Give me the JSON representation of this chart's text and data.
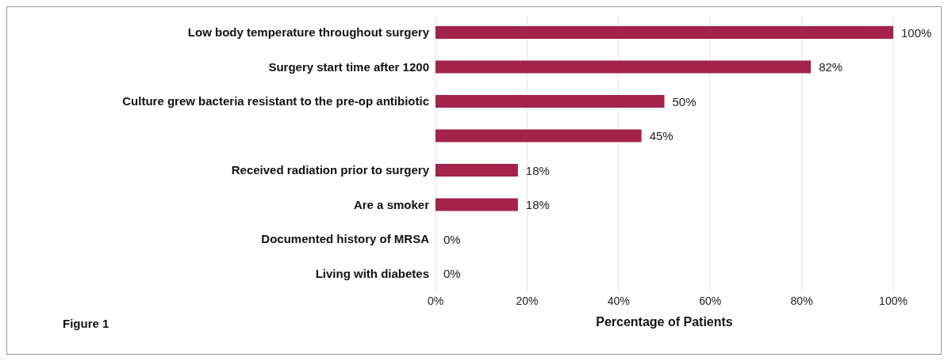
{
  "chart_data": {
    "type": "bar",
    "orientation": "horizontal",
    "xlabel": "Percentage of Patients",
    "categories": [
      "Low body temperature throughout surgery",
      "Surgery start time after 1200",
      "Culture grew bacteria resistant to the pre-op antibiotic",
      null,
      "Received radiation prior to surgery",
      "Are a smoker",
      "Documented history of MRSA",
      "Living with diabetes"
    ],
    "values": [
      100,
      82,
      50,
      45,
      18,
      18,
      0,
      0
    ],
    "value_labels": [
      "100%",
      "82%",
      "50%",
      "45%",
      "18%",
      "18%",
      "0%",
      "0%"
    ],
    "color": "#a3234a",
    "xlim": [
      0,
      100
    ],
    "xticks": [
      {
        "value": 0,
        "label": "0%"
      },
      {
        "value": 20,
        "label": "20%"
      },
      {
        "value": 40,
        "label": "40%"
      },
      {
        "value": 60,
        "label": "60%"
      },
      {
        "value": 80,
        "label": "80%"
      },
      {
        "value": 100,
        "label": "100%"
      }
    ],
    "grid": "x",
    "annotations": [
      "Figure 1"
    ]
  }
}
